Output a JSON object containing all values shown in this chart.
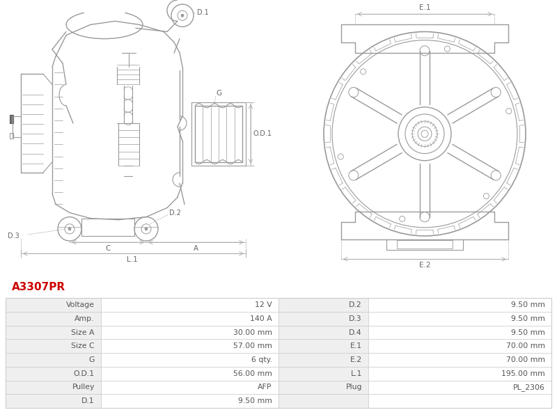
{
  "title": "A3307PR",
  "title_color": "#cc0000",
  "table_data": [
    [
      "Voltage",
      "12 V",
      "D.2",
      "9.50 mm"
    ],
    [
      "Amp.",
      "140 A",
      "D.3",
      "9.50 mm"
    ],
    [
      "Size A",
      "30.00 mm",
      "D.4",
      "9.50 mm"
    ],
    [
      "Size C",
      "57.00 mm",
      "E.1",
      "70.00 mm"
    ],
    [
      "G",
      "6 qty.",
      "E.2",
      "70.00 mm"
    ],
    [
      "O.D.1",
      "56.00 mm",
      "L.1",
      "195.00 mm"
    ],
    [
      "Pulley",
      "AFP",
      "Plug",
      "PL_2306"
    ],
    [
      "D.1",
      "9.50 mm",
      "",
      ""
    ]
  ],
  "bg_color": "#ffffff",
  "table_row_bg_label": "#efefef",
  "table_row_bg_value": "#ffffff",
  "table_border_color": "#cccccc",
  "text_color": "#555555",
  "drawing_color": "#999999",
  "dim_color": "#666666",
  "dim_line_color": "#aaaaaa"
}
